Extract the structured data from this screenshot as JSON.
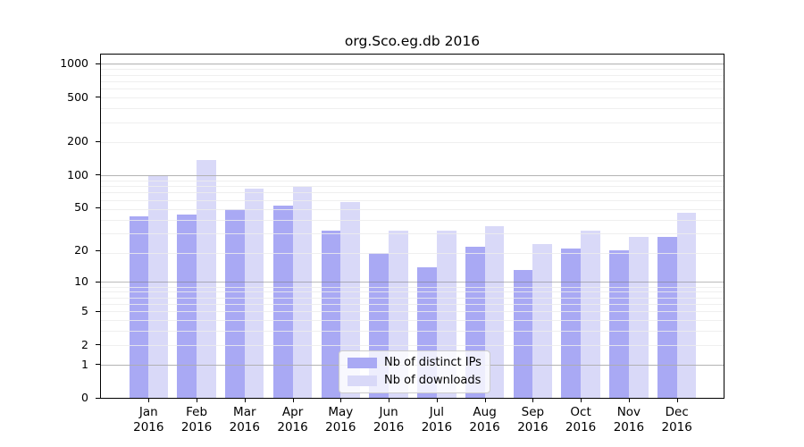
{
  "chart_data": {
    "type": "bar",
    "title": "org.Sco.eg.db 2016",
    "categories": [
      "Jan 2016",
      "Feb 2016",
      "Mar 2016",
      "Apr 2016",
      "May 2016",
      "Jun 2016",
      "Jul 2016",
      "Aug 2016",
      "Sep 2016",
      "Oct 2016",
      "Nov 2016",
      "Dec 2016"
    ],
    "series": [
      {
        "name": "Nb of distinct IPs",
        "color": "#a9a9f4",
        "values": [
          42,
          43,
          49,
          52,
          31,
          19,
          14,
          22,
          13,
          21,
          20,
          27
        ]
      },
      {
        "name": "Nb of downloads",
        "color": "#d9d9f8",
        "values": [
          100,
          137,
          75,
          77,
          57,
          31,
          31,
          34,
          23,
          31,
          27,
          45
        ]
      }
    ],
    "xlabel": "",
    "ylabel": "",
    "y_ticks": [
      0,
      1,
      2,
      5,
      10,
      20,
      50,
      100,
      200,
      500,
      1000
    ],
    "y_scale": "log10(value+1)",
    "ylim": [
      0,
      1200
    ],
    "grid": "horizontal, log minor + major lines drawn over bars",
    "legend_position": "lower center inside plot",
    "colors": {
      "background": "#ffffff",
      "frame": "#000000",
      "grid_major": "#b3b3b3",
      "grid_minor": "#ececec",
      "legend_border": "#cccccc"
    }
  }
}
